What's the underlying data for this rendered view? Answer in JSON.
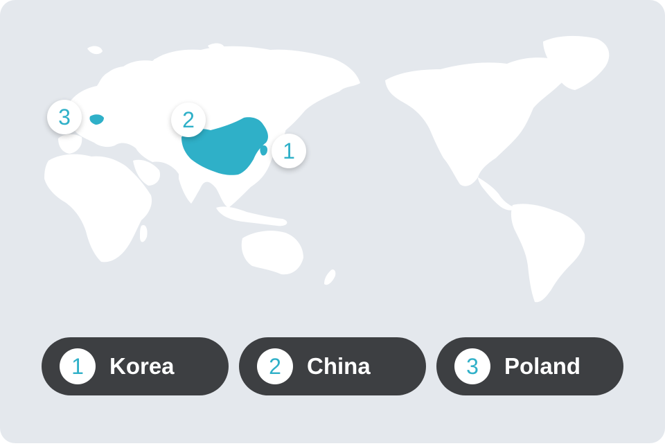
{
  "colors": {
    "background": "#e4e8ed",
    "land": "#ffffff",
    "highlight": "#2fb0c8",
    "pill": "#3d3f42"
  },
  "markers": [
    {
      "number": "1",
      "country": "Korea"
    },
    {
      "number": "2",
      "country": "China"
    },
    {
      "number": "3",
      "country": "Poland"
    }
  ],
  "legend": [
    {
      "number": "1",
      "label": "Korea"
    },
    {
      "number": "2",
      "label": "China"
    },
    {
      "number": "3",
      "label": "Poland"
    }
  ]
}
